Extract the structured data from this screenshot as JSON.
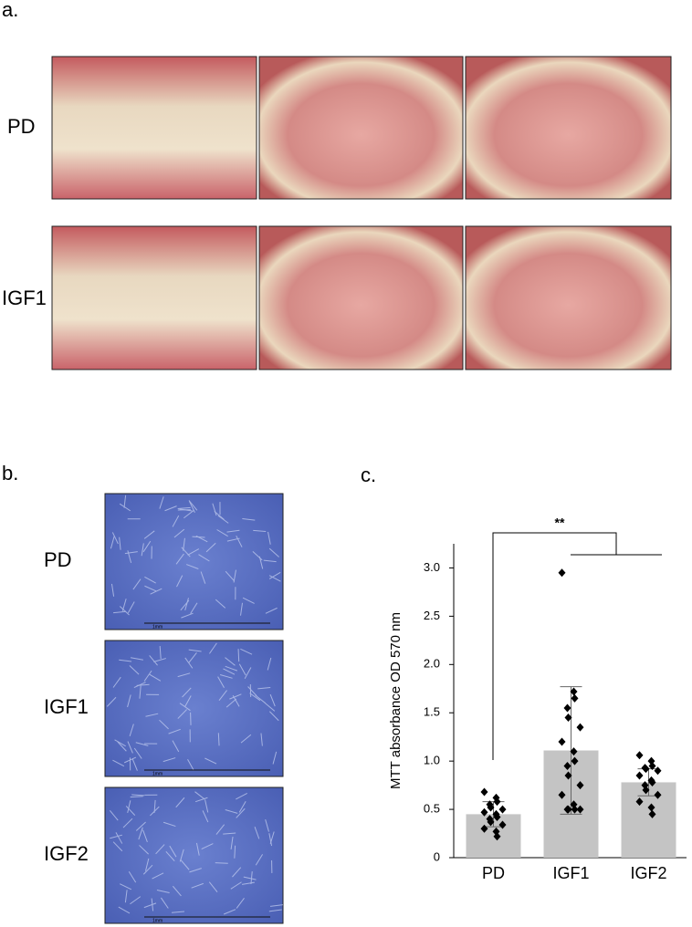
{
  "panel_a": {
    "label": "a.",
    "rows": [
      "PD",
      "IGF1"
    ]
  },
  "panel_b": {
    "label": "b.",
    "rows": [
      "PD",
      "IGF1",
      "IGF2"
    ],
    "scale_bar": "1mm"
  },
  "chart_data": {
    "type": "bar",
    "label": "c.",
    "ylabel": "MTT absorbance OD 570 nm",
    "categories": [
      "PD",
      "IGF1",
      "IGF2"
    ],
    "values": [
      0.45,
      1.11,
      0.78
    ],
    "errors": [
      0.13,
      0.66,
      0.14
    ],
    "points": [
      [
        0.68,
        0.62,
        0.58,
        0.55,
        0.52,
        0.5,
        0.47,
        0.45,
        0.42,
        0.4,
        0.37,
        0.34,
        0.3,
        0.27,
        0.22
      ],
      [
        2.95,
        1.72,
        1.65,
        1.55,
        1.45,
        1.35,
        1.2,
        1.1,
        1.0,
        0.95,
        0.85,
        0.75,
        0.65,
        0.55,
        0.5,
        0.5,
        0.5,
        0.5
      ],
      [
        1.06,
        1.0,
        0.95,
        0.93,
        0.92,
        0.9,
        0.85,
        0.8,
        0.78,
        0.75,
        0.7,
        0.65,
        0.58,
        0.52,
        0.45
      ]
    ],
    "color": "#c4c4c4",
    "ylim": [
      0,
      3.25
    ],
    "yticks": [
      0,
      0.5,
      {
        "value": 1,
        "label": "1.0"
      },
      1.5,
      {
        "value": 2,
        "label": "2.0"
      },
      2.5,
      {
        "value": 3,
        "label": "3.0"
      }
    ],
    "annotation": "**"
  }
}
